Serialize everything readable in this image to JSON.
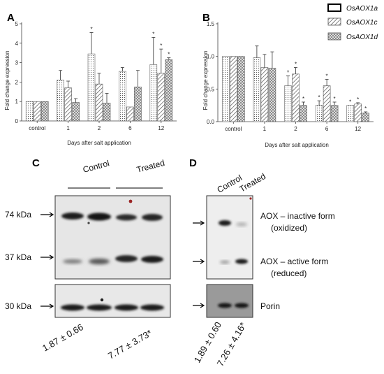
{
  "legend": [
    {
      "label": "OsAOX1a",
      "fill": "dots"
    },
    {
      "label": "OsAOX1c",
      "fill": "hatch"
    },
    {
      "label": "OsAOX1d",
      "fill": "checker"
    }
  ],
  "chart_data": [
    {
      "panel": "A",
      "type": "bar",
      "categories": [
        "control",
        "1",
        "2",
        "6",
        "12"
      ],
      "series": [
        {
          "name": "OsAOX1a",
          "values": [
            1.0,
            2.1,
            3.45,
            2.55,
            2.9
          ],
          "errors": [
            0.0,
            0.5,
            1.1,
            0.2,
            1.4
          ]
        },
        {
          "name": "OsAOX1c",
          "values": [
            1.0,
            1.7,
            1.9,
            0.72,
            2.45
          ],
          "errors": [
            0.0,
            0.35,
            0.55,
            0.0,
            1.25
          ]
        },
        {
          "name": "OsAOX1d",
          "values": [
            1.0,
            0.95,
            0.92,
            1.75,
            3.15
          ],
          "errors": [
            0.0,
            0.2,
            0.5,
            0.85,
            0.1
          ]
        }
      ],
      "significance": [
        {
          "category": "2",
          "series": "OsAOX1a",
          "mark": "*"
        },
        {
          "category": "12",
          "series": "OsAOX1a",
          "mark": "*"
        },
        {
          "category": "12",
          "series": "OsAOX1c",
          "mark": "*"
        },
        {
          "category": "12",
          "series": "OsAOX1d",
          "mark": "*"
        }
      ],
      "xlabel": "Days after salt application",
      "ylabel": "Fold change expression",
      "ylim": [
        0,
        5
      ],
      "yticks": [
        0,
        1,
        2,
        3,
        4,
        5
      ]
    },
    {
      "panel": "B",
      "type": "bar",
      "categories": [
        "control",
        "1",
        "2",
        "6",
        "12"
      ],
      "series": [
        {
          "name": "OsAOX1a",
          "values": [
            1.0,
            0.98,
            0.55,
            0.25,
            0.25
          ],
          "errors": [
            0.0,
            0.18,
            0.15,
            0.07,
            0.0
          ]
        },
        {
          "name": "OsAOX1c",
          "values": [
            1.0,
            0.83,
            0.73,
            0.55,
            0.27
          ],
          "errors": [
            0.0,
            0.2,
            0.1,
            0.1,
            0.02
          ]
        },
        {
          "name": "OsAOX1d",
          "values": [
            1.0,
            0.82,
            0.25,
            0.25,
            0.13
          ],
          "errors": [
            0.0,
            0.25,
            0.05,
            0.05,
            0.02
          ]
        }
      ],
      "significance": [
        {
          "category": "2",
          "series": "OsAOX1a",
          "mark": "*"
        },
        {
          "category": "2",
          "series": "OsAOX1c",
          "mark": "*"
        },
        {
          "category": "2",
          "series": "OsAOX1d",
          "mark": "*"
        },
        {
          "category": "6",
          "series": "OsAOX1a",
          "mark": "*"
        },
        {
          "category": "6",
          "series": "OsAOX1c",
          "mark": "*"
        },
        {
          "category": "6",
          "series": "OsAOX1d",
          "mark": "*"
        },
        {
          "category": "12",
          "series": "OsAOX1a",
          "mark": "*"
        },
        {
          "category": "12",
          "series": "OsAOX1c",
          "mark": "*"
        },
        {
          "category": "12",
          "series": "OsAOX1d",
          "mark": "*"
        }
      ],
      "xlabel": "Days after salt application",
      "ylabel": "Fold change expression",
      "ylim": [
        0,
        1.5
      ],
      "yticks": [
        0.0,
        0.5,
        1.0,
        1.5
      ]
    }
  ],
  "blots": {
    "C": {
      "letter": "C",
      "group_control": "Control",
      "group_treated": "Treated",
      "markers": [
        "74 kDa",
        "37 kDa",
        "30 kDa"
      ],
      "quant_control": "1.87 ± 0.66",
      "quant_treated": "7.77 ± 3.73*"
    },
    "D": {
      "letter": "D",
      "lane_control": "Control",
      "lane_treated": "Treated",
      "inactive_title": "AOX – inactive form",
      "inactive_sub": "(oxidized)",
      "active_title": "AOX – active form",
      "active_sub": "(reduced)",
      "porin": "Porin",
      "quant_control": "1.89 ± 0.60",
      "quant_treated": "7.26 ± 4.16*"
    }
  }
}
